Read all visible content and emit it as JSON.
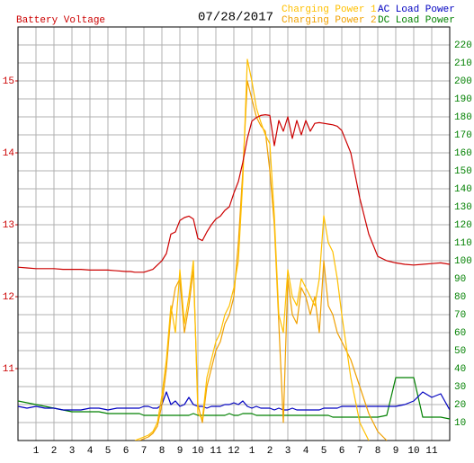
{
  "chart_data": {
    "type": "line",
    "title": "Battery Voltage",
    "subtitle": "07/28/2017",
    "xlim": [
      0,
      24
    ],
    "xticks": [
      1,
      2,
      3,
      4,
      5,
      6,
      7,
      8,
      9,
      10,
      11,
      12,
      {
        "value": 13,
        "label": "1"
      },
      {
        "value": 14,
        "label": "2"
      },
      {
        "value": 15,
        "label": "3"
      },
      {
        "value": 16,
        "label": "4"
      },
      {
        "value": 17,
        "label": "5"
      },
      {
        "value": 18,
        "label": "6"
      },
      {
        "value": 19,
        "label": "7"
      },
      {
        "value": 20,
        "label": "8"
      },
      {
        "value": 21,
        "label": "9"
      },
      {
        "value": 22,
        "label": "10"
      },
      {
        "value": 23,
        "label": "11"
      }
    ],
    "ylim": [
      10,
      15.75
    ],
    "yticks": [
      11,
      12,
      13,
      14,
      15
    ],
    "y2lim": [
      0,
      230
    ],
    "y2ticks": [
      10,
      20,
      30,
      40,
      50,
      60,
      70,
      80,
      90,
      100,
      110,
      120,
      130,
      140,
      150,
      160,
      170,
      180,
      190,
      200,
      210,
      220
    ],
    "grid": true,
    "x": [
      0,
      0.5,
      1,
      1.5,
      2,
      2.5,
      3,
      3.5,
      4,
      4.5,
      5,
      5.5,
      6,
      6.25,
      6.5,
      6.75,
      7,
      7.25,
      7.5,
      7.75,
      8,
      8.25,
      8.5,
      8.75,
      9,
      9.25,
      9.5,
      9.75,
      10,
      10.25,
      10.5,
      10.75,
      11,
      11.25,
      11.5,
      11.75,
      12,
      12.25,
      12.5,
      12.75,
      13,
      13.25,
      13.5,
      13.75,
      14,
      14.25,
      14.5,
      14.75,
      15,
      15.25,
      15.5,
      15.75,
      16,
      16.25,
      16.5,
      16.75,
      17,
      17.25,
      17.5,
      17.75,
      18,
      18.5,
      19,
      19.5,
      20,
      20.5,
      21,
      21.5,
      22,
      22.5,
      23,
      23.5,
      24
    ],
    "series": [
      {
        "name": "Battery Voltage",
        "color": "#cc0000",
        "axis": "y",
        "values": [
          12.41,
          12.4,
          12.39,
          12.39,
          12.39,
          12.38,
          12.38,
          12.38,
          12.37,
          12.37,
          12.37,
          12.36,
          12.35,
          12.35,
          12.34,
          12.34,
          12.34,
          12.36,
          12.38,
          12.44,
          12.5,
          12.6,
          12.87,
          12.9,
          13.06,
          13.1,
          13.12,
          13.08,
          12.81,
          12.78,
          12.9,
          13.0,
          13.08,
          13.12,
          13.2,
          13.25,
          13.44,
          13.6,
          13.87,
          14.2,
          14.44,
          14.49,
          14.52,
          14.53,
          14.52,
          14.1,
          14.45,
          14.3,
          14.5,
          14.2,
          14.45,
          14.25,
          14.45,
          14.3,
          14.41,
          14.42,
          14.41,
          14.4,
          14.39,
          14.37,
          14.31,
          14.0,
          13.37,
          12.87,
          12.56,
          12.5,
          12.47,
          12.45,
          12.44,
          12.45,
          12.46,
          12.47,
          12.45
        ]
      },
      {
        "name": "Charging Power 1",
        "color": "#ffc000",
        "axis": "y2",
        "values": [
          null,
          null,
          null,
          null,
          null,
          null,
          null,
          null,
          null,
          null,
          null,
          null,
          null,
          null,
          0,
          1,
          2,
          3,
          5,
          10,
          25,
          45,
          75,
          60,
          95,
          65,
          80,
          100,
          15,
          12,
          35,
          45,
          55,
          60,
          70,
          75,
          85,
          100,
          145,
          212,
          200,
          185,
          177,
          170,
          165,
          125,
          70,
          60,
          95,
          80,
          75,
          90,
          85,
          80,
          75,
          90,
          125,
          110,
          105,
          90,
          70,
          35,
          10,
          0,
          null,
          null,
          null,
          null,
          null,
          null,
          null,
          null,
          null
        ]
      },
      {
        "name": "Charging Power 2",
        "color": "#f0a000",
        "axis": "y2",
        "values": [
          null,
          null,
          null,
          null,
          null,
          null,
          null,
          null,
          null,
          null,
          null,
          null,
          null,
          null,
          0,
          0,
          1,
          2,
          4,
          8,
          20,
          40,
          70,
          85,
          90,
          60,
          75,
          95,
          20,
          10,
          30,
          40,
          50,
          55,
          65,
          70,
          80,
          110,
          150,
          200,
          190,
          180,
          175,
          172,
          150,
          120,
          65,
          10,
          90,
          70,
          65,
          85,
          80,
          70,
          80,
          60,
          100,
          75,
          70,
          60,
          55,
          45,
          30,
          15,
          5,
          0,
          null,
          null,
          null,
          null,
          null,
          null,
          null
        ]
      },
      {
        "name": "AC Load Power",
        "color": "#0000c0",
        "axis": "y2",
        "values": [
          19,
          18,
          19,
          18,
          18,
          17,
          17,
          17,
          18,
          18,
          17,
          18,
          18,
          18,
          18,
          18,
          19,
          19,
          18,
          18,
          20,
          27,
          20,
          22,
          19,
          20,
          24,
          20,
          19,
          19,
          18,
          19,
          19,
          19,
          20,
          20,
          21,
          20,
          22,
          19,
          18,
          19,
          18,
          18,
          18,
          17,
          18,
          17,
          17,
          18,
          17,
          17,
          17,
          17,
          17,
          17,
          18,
          18,
          18,
          18,
          19,
          19,
          19,
          19,
          19,
          19,
          19,
          20,
          22,
          27,
          24,
          26,
          17
        ]
      },
      {
        "name": "DC Load Power",
        "color": "#008000",
        "axis": "y2",
        "values": [
          22,
          21,
          20,
          19,
          18,
          17,
          16,
          16,
          16,
          16,
          15,
          15,
          15,
          15,
          15,
          15,
          14,
          14,
          14,
          14,
          14,
          14,
          14,
          14,
          14,
          14,
          14,
          15,
          14,
          14,
          14,
          14,
          14,
          14,
          14,
          15,
          14,
          14,
          15,
          15,
          15,
          14,
          14,
          14,
          14,
          14,
          14,
          14,
          14,
          14,
          14,
          14,
          14,
          14,
          14,
          14,
          14,
          14,
          13,
          13,
          13,
          13,
          13,
          13,
          13,
          14,
          35,
          35,
          35,
          13,
          13,
          13,
          12
        ]
      }
    ]
  }
}
